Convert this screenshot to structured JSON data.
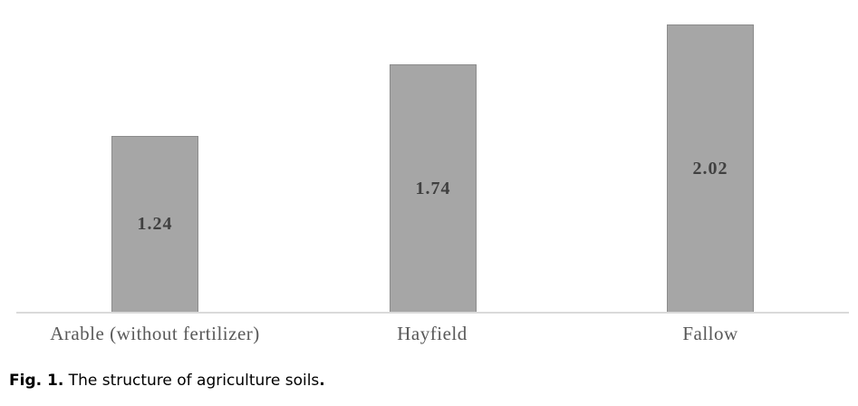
{
  "figure": {
    "caption_prefix": "Fig. 1.",
    "caption_body": " The structure of agriculture soils",
    "caption_suffix": "."
  },
  "chart_data": {
    "type": "bar",
    "categories": [
      "Arable (without fertilizer)",
      "Hayfield",
      "Fallow"
    ],
    "values": [
      1.24,
      1.74,
      2.02
    ],
    "value_labels": [
      "1.24",
      "1.74",
      "2.02"
    ],
    "title": "",
    "xlabel": "",
    "ylabel": "",
    "ylim": [
      0,
      2.2
    ],
    "grid": false,
    "legend": "none",
    "value_label_position": "center-inside",
    "bar_fill_color": "#a6a6a6",
    "bar_border_color": "#8c8c8c",
    "value_label_color": "#404040",
    "category_label_color": "#595959",
    "axis_line_color": "#dadada",
    "background_color": "#ffffff"
  }
}
